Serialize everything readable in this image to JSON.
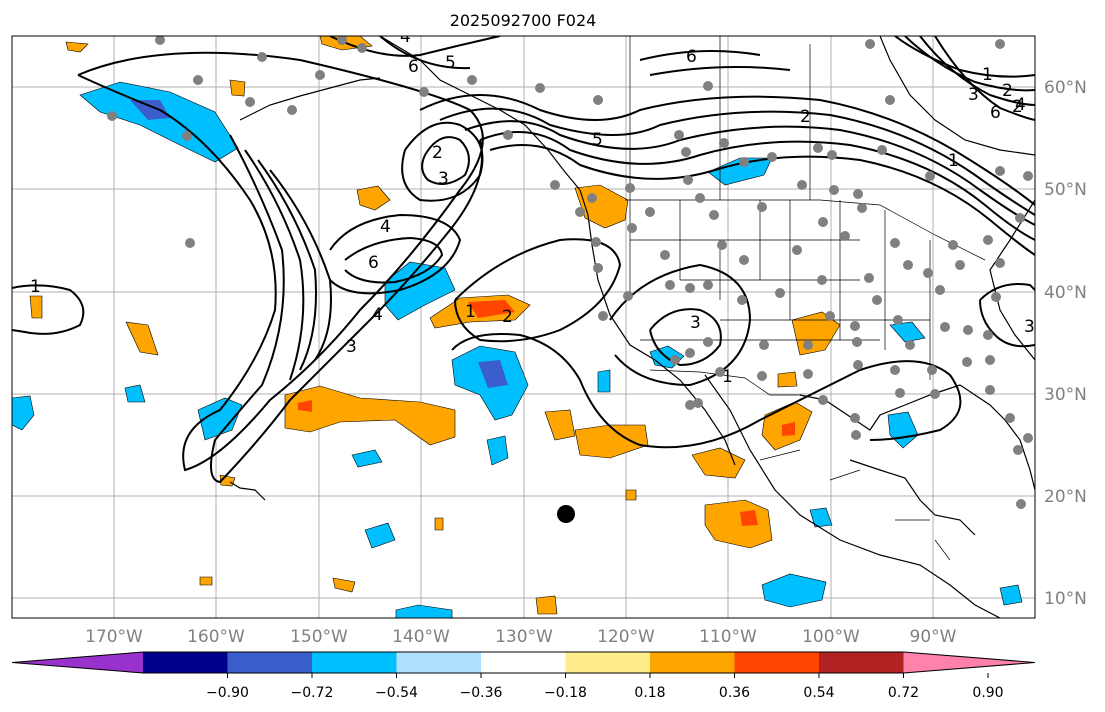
{
  "title": "2025092700 F024",
  "longitude_labels": [
    "170°W",
    "160°W",
    "150°W",
    "140°W",
    "130°W",
    "120°W",
    "110°W",
    "100°W",
    "90°W"
  ],
  "latitude_labels": [
    "60°N",
    "50°N",
    "40°N",
    "30°N",
    "20°N",
    "10°N"
  ],
  "colorbar": {
    "tick_labels": [
      "−0.90",
      "−0.72",
      "−0.54",
      "−0.36",
      "−0.18",
      "0.18",
      "0.36",
      "0.54",
      "0.72",
      "0.90"
    ],
    "colors": [
      "#9932cc",
      "#00008b",
      "#3a5fcd",
      "#00bfff",
      "#b0e2ff",
      "#ffffff",
      "#ffec8b",
      "#ffa500",
      "#ff4500",
      "#b22222",
      "#ff82ab"
    ]
  },
  "contour_labels": [
    "1",
    "2",
    "3",
    "4",
    "5",
    "6",
    "1",
    "2",
    "3",
    "4",
    "5",
    "6",
    "2",
    "3",
    "4",
    "6",
    "1",
    "2",
    "3",
    "1",
    "2",
    "3",
    "4",
    "6",
    "1"
  ],
  "colors": {
    "land_grey": "#808080",
    "grid": "#b0b0b0",
    "contour": "#000000"
  }
}
